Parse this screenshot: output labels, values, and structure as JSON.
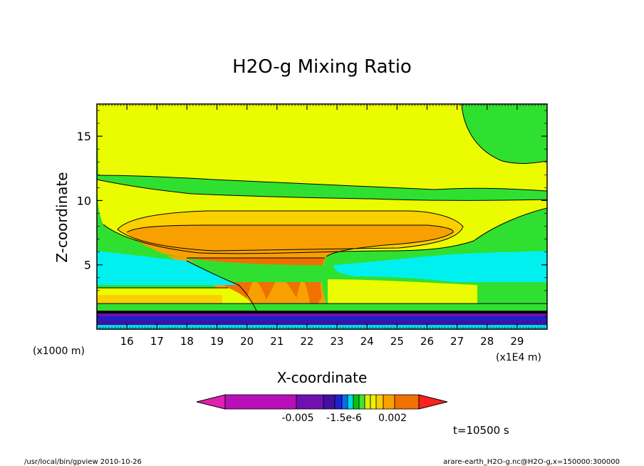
{
  "chart_data": {
    "type": "heatmap",
    "title": "H2O-g Mixing Ratio",
    "xlabel": "X-coordinate",
    "ylabel": "Z-coordinate",
    "x_unit": "(x1E4 m)",
    "y_unit": "(x1000 m)",
    "xlim": [
      15.0,
      30.0
    ],
    "ylim": [
      0.0,
      17.5
    ],
    "x_ticks": [
      16,
      17,
      18,
      19,
      20,
      21,
      22,
      23,
      24,
      25,
      26,
      27,
      28,
      29
    ],
    "y_ticks": [
      5,
      10,
      15
    ],
    "time_label": "t=10500 s",
    "colorbar": {
      "tick_labels": [
        "-0.005",
        "-1.5e-6",
        "0.002"
      ],
      "colors": [
        "#e020b0",
        "#b810b8",
        "#7010b0",
        "#4010a0",
        "#2020d0",
        "#0070f0",
        "#00d8e8",
        "#00c800",
        "#40e040",
        "#d8f000",
        "#f0f000",
        "#f8d000",
        "#f8a000",
        "#f07000",
        "#ff2020"
      ]
    }
  },
  "footer": {
    "left": "/usr/local/bin/gpview  2010-10-26",
    "right": "arare-earth_H2O-g.nc@H2O-g,x=150000:300000"
  },
  "colors": {
    "outer_green": "#30e030",
    "yellow": "#ecfc00",
    "light_orange": "#fcd000",
    "orange": "#f8a000",
    "dark_orange": "#f07000",
    "cyan": "#00f0f0",
    "purple": "#7010b0",
    "blue": "#2020c8"
  }
}
